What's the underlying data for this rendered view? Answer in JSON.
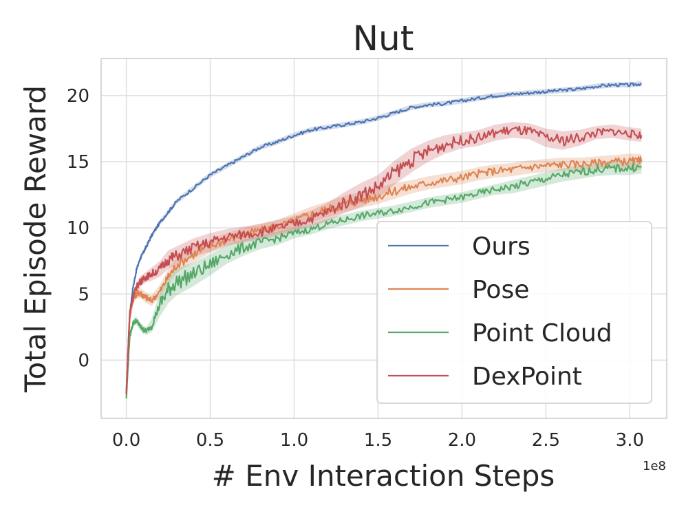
{
  "chart_data": {
    "type": "line",
    "title": "Nut",
    "xlabel": "# Env Interaction Steps",
    "ylabel": "Total Episode Reward",
    "x_offset_label": "1e8",
    "xlim": [
      -0.15,
      3.22
    ],
    "ylim": [
      -4.4,
      22.8
    ],
    "xticks": [
      0.0,
      0.5,
      1.0,
      1.5,
      2.0,
      2.5,
      3.0
    ],
    "xtick_labels": [
      "0.0",
      "0.5",
      "1.0",
      "1.5",
      "2.0",
      "2.5",
      "3.0"
    ],
    "yticks": [
      0,
      5,
      10,
      15,
      20
    ],
    "ytick_labels": [
      "0",
      "5",
      "10",
      "15",
      "20"
    ],
    "grid": true,
    "legend_position": "lower-right",
    "series": [
      {
        "name": "Ours",
        "color": "#4c72b0",
        "x": [
          0.0,
          0.02,
          0.04,
          0.06,
          0.08,
          0.1,
          0.12,
          0.15,
          0.2,
          0.25,
          0.3,
          0.4,
          0.5,
          0.6,
          0.7,
          0.8,
          0.9,
          1.0,
          1.1,
          1.2,
          1.3,
          1.4,
          1.5,
          1.6,
          1.7,
          1.8,
          1.9,
          2.0,
          2.1,
          2.2,
          2.3,
          2.4,
          2.5,
          2.6,
          2.7,
          2.8,
          2.9,
          3.0,
          3.07
        ],
        "values": [
          -2.5,
          3.5,
          5.5,
          6.8,
          7.6,
          8.1,
          8.6,
          9.4,
          10.4,
          11.2,
          12.0,
          13.0,
          14.0,
          14.7,
          15.4,
          16.1,
          16.5,
          17.0,
          17.4,
          17.6,
          17.8,
          18.0,
          18.3,
          18.7,
          19.1,
          19.3,
          19.4,
          19.6,
          19.8,
          20.0,
          20.1,
          20.2,
          20.3,
          20.4,
          20.5,
          20.7,
          20.8,
          20.8,
          20.9
        ],
        "band": [
          0.2,
          0.2,
          0.2,
          0.2,
          0.2,
          0.2,
          0.2,
          0.2,
          0.2,
          0.2,
          0.2,
          0.2,
          0.2,
          0.2,
          0.2,
          0.2,
          0.2,
          0.2,
          0.2,
          0.2,
          0.2,
          0.2,
          0.2,
          0.2,
          0.2,
          0.2,
          0.2,
          0.2,
          0.2,
          0.2,
          0.2,
          0.2,
          0.2,
          0.2,
          0.2,
          0.2,
          0.2,
          0.2,
          0.2
        ]
      },
      {
        "name": "Pose",
        "color": "#dd8452",
        "x": [
          0.0,
          0.02,
          0.04,
          0.06,
          0.08,
          0.1,
          0.12,
          0.15,
          0.2,
          0.25,
          0.3,
          0.4,
          0.5,
          0.6,
          0.7,
          0.8,
          0.9,
          1.0,
          1.1,
          1.2,
          1.3,
          1.4,
          1.5,
          1.6,
          1.7,
          1.8,
          1.9,
          2.0,
          2.1,
          2.2,
          2.3,
          2.4,
          2.5,
          2.6,
          2.7,
          2.8,
          2.9,
          3.0,
          3.07
        ],
        "values": [
          -2.4,
          3.2,
          4.6,
          5.0,
          5.1,
          4.9,
          4.7,
          4.5,
          5.2,
          6.3,
          7.2,
          8.0,
          8.6,
          9.1,
          9.5,
          9.8,
          10.1,
          10.5,
          11.0,
          11.4,
          11.8,
          12.1,
          12.4,
          12.8,
          13.1,
          13.4,
          13.6,
          13.8,
          14.1,
          14.3,
          14.4,
          14.6,
          14.7,
          14.8,
          14.8,
          14.9,
          15.0,
          15.0,
          15.0
        ],
        "band": [
          0.2,
          0.3,
          0.4,
          0.4,
          0.4,
          0.4,
          0.4,
          0.4,
          0.5,
          0.6,
          0.6,
          0.6,
          0.5,
          0.5,
          0.5,
          0.5,
          0.5,
          0.6,
          0.6,
          0.6,
          0.6,
          0.6,
          0.6,
          0.6,
          0.5,
          0.5,
          0.5,
          0.5,
          0.5,
          0.5,
          0.5,
          0.5,
          0.5,
          0.5,
          0.5,
          0.5,
          0.5,
          0.6,
          0.6
        ]
      },
      {
        "name": "Point Cloud",
        "color": "#55a868",
        "x": [
          0.0,
          0.02,
          0.04,
          0.06,
          0.08,
          0.1,
          0.12,
          0.15,
          0.2,
          0.25,
          0.3,
          0.4,
          0.5,
          0.6,
          0.7,
          0.8,
          0.9,
          1.0,
          1.1,
          1.2,
          1.3,
          1.4,
          1.5,
          1.6,
          1.7,
          1.8,
          1.9,
          2.0,
          2.1,
          2.2,
          2.3,
          2.4,
          2.5,
          2.6,
          2.7,
          2.8,
          2.9,
          3.0,
          3.07
        ],
        "values": [
          -2.9,
          1.8,
          2.8,
          3.0,
          2.6,
          2.3,
          2.2,
          2.6,
          4.2,
          5.3,
          5.9,
          6.5,
          7.2,
          8.0,
          8.5,
          8.9,
          9.2,
          9.6,
          9.9,
          10.3,
          10.6,
          10.9,
          11.1,
          11.3,
          11.6,
          11.9,
          12.1,
          12.3,
          12.6,
          12.9,
          13.1,
          13.4,
          13.7,
          14.0,
          14.2,
          14.4,
          14.5,
          14.5,
          14.6
        ],
        "band": [
          0.2,
          0.3,
          0.3,
          0.3,
          0.3,
          0.3,
          0.3,
          0.5,
          0.9,
          1.0,
          1.0,
          0.9,
          0.8,
          0.7,
          0.6,
          0.5,
          0.5,
          0.4,
          0.4,
          0.4,
          0.4,
          0.4,
          0.4,
          0.4,
          0.4,
          0.4,
          0.4,
          0.4,
          0.4,
          0.4,
          0.5,
          0.5,
          0.5,
          0.5,
          0.5,
          0.5,
          0.5,
          0.5,
          0.5
        ]
      },
      {
        "name": "DexPoint",
        "color": "#c44e52",
        "x": [
          0.0,
          0.02,
          0.04,
          0.06,
          0.08,
          0.1,
          0.12,
          0.15,
          0.2,
          0.25,
          0.3,
          0.4,
          0.5,
          0.6,
          0.7,
          0.8,
          0.9,
          1.0,
          1.1,
          1.2,
          1.3,
          1.4,
          1.5,
          1.6,
          1.7,
          1.8,
          1.9,
          2.0,
          2.1,
          2.2,
          2.3,
          2.4,
          2.5,
          2.6,
          2.7,
          2.8,
          2.9,
          3.0,
          3.07
        ],
        "values": [
          -2.6,
          3.5,
          4.8,
          5.5,
          5.9,
          6.1,
          6.3,
          6.5,
          6.9,
          7.6,
          7.9,
          8.5,
          8.9,
          9.3,
          9.5,
          9.7,
          10.0,
          10.3,
          10.7,
          11.2,
          11.9,
          12.5,
          13.1,
          14.2,
          15.1,
          15.8,
          16.3,
          16.6,
          16.8,
          17.2,
          17.4,
          17.3,
          16.8,
          16.6,
          16.8,
          17.2,
          17.3,
          17.1,
          17.0
        ],
        "band": [
          0.2,
          0.3,
          0.4,
          0.4,
          0.4,
          0.4,
          0.4,
          0.5,
          0.6,
          0.7,
          0.7,
          0.7,
          0.7,
          0.6,
          0.6,
          0.6,
          0.6,
          0.6,
          0.6,
          0.7,
          0.8,
          0.9,
          0.9,
          0.9,
          0.9,
          0.8,
          0.7,
          0.6,
          0.6,
          0.6,
          0.6,
          0.6,
          0.7,
          0.7,
          0.6,
          0.5,
          0.5,
          0.5,
          0.5
        ]
      }
    ]
  }
}
